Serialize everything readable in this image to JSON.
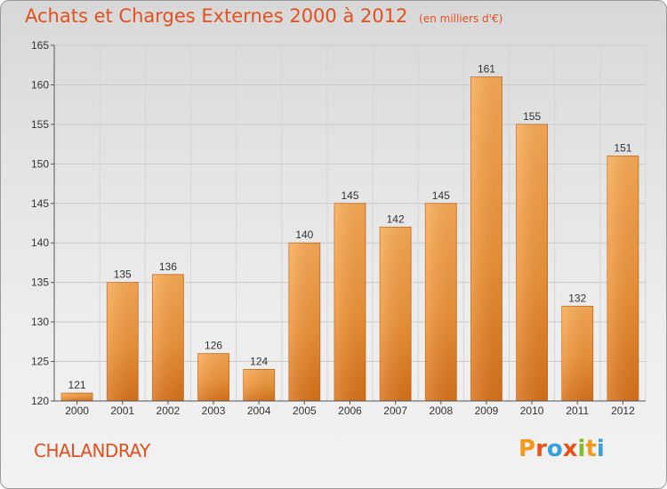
{
  "chart_data": {
    "type": "bar",
    "title": "Achats et Charges Externes 2000 à 2012",
    "subtitle": "(en milliers d'€)",
    "categories": [
      "2000",
      "2001",
      "2002",
      "2003",
      "2004",
      "2005",
      "2006",
      "2007",
      "2008",
      "2009",
      "2010",
      "2011",
      "2012"
    ],
    "values": [
      121,
      135,
      136,
      126,
      124,
      140,
      145,
      142,
      145,
      161,
      155,
      132,
      151
    ],
    "ylim": [
      120,
      165
    ],
    "yticks": [
      120,
      125,
      130,
      135,
      140,
      145,
      150,
      155,
      160,
      165
    ],
    "grid": true,
    "xlabel": "",
    "ylabel": "",
    "colors": {
      "bar_light": "#f7a650",
      "bar_dark": "#de7a1e",
      "title": "#e2501d"
    }
  },
  "footer": {
    "city": "CHALANDRAY",
    "logo_letters": [
      "P",
      "r",
      "o",
      "x",
      "i",
      "t",
      "i"
    ],
    "logo_colors": [
      "#f39a1e",
      "#e8531b",
      "#3aa0d8",
      "#e8531b",
      "#7dbb2f",
      "#f39a1e",
      "#3aa0d8"
    ]
  }
}
